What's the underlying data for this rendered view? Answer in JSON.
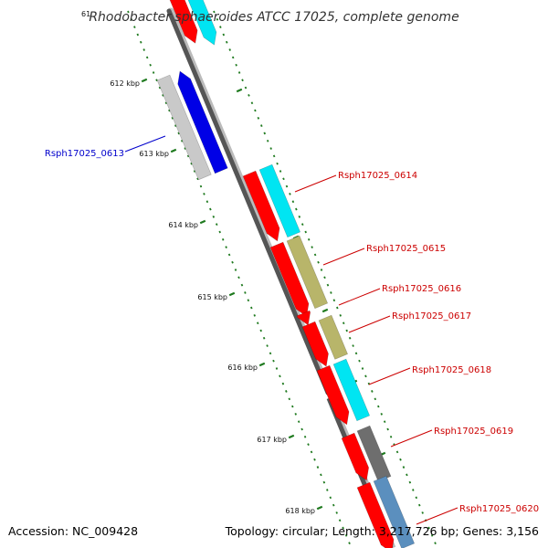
{
  "header": {
    "title": "Rhodobacter sphaeroides ATCC 17025, complete genome"
  },
  "footer": {
    "accession": "Accession: NC_009428",
    "topology": "Topology: circular; Length: 3,217,726 bp; Genes: 3,156"
  },
  "colors": {
    "backbone_dark": "#555555",
    "backbone_light": "#bbbbbb",
    "tick_green": "#1f7a1f",
    "label_red": "#cc0000",
    "label_blue": "#0000cc",
    "cds_red": "#ff0000",
    "cyan": "#00e5f2",
    "khaki": "#b8b56a",
    "gray": "#6e6e6e",
    "steelblue": "#5b8fbe",
    "lightgray": "#c9c9c9",
    "blue": "#0000e6"
  },
  "scale": {
    "partial_label": "61",
    "ticks": [
      {
        "label": "612 kbp"
      },
      {
        "label": "613 kbp"
      },
      {
        "label": "614 kbp"
      },
      {
        "label": "615 kbp"
      },
      {
        "label": "616 kbp"
      },
      {
        "label": "617 kbp"
      },
      {
        "label": "618 kbp"
      }
    ]
  },
  "genes": [
    {
      "locus": "Rsph17025_0613",
      "strand": "forward"
    },
    {
      "locus": "Rsph17025_0614",
      "strand": "reverse"
    },
    {
      "locus": "Rsph17025_0615",
      "strand": "reverse"
    },
    {
      "locus": "Rsph17025_0616",
      "strand": "reverse"
    },
    {
      "locus": "Rsph17025_0617",
      "strand": "reverse"
    },
    {
      "locus": "Rsph17025_0618",
      "strand": "reverse"
    },
    {
      "locus": "Rsph17025_0619",
      "strand": "reverse"
    },
    {
      "locus": "Rsph17025_0620",
      "strand": "reverse"
    }
  ]
}
